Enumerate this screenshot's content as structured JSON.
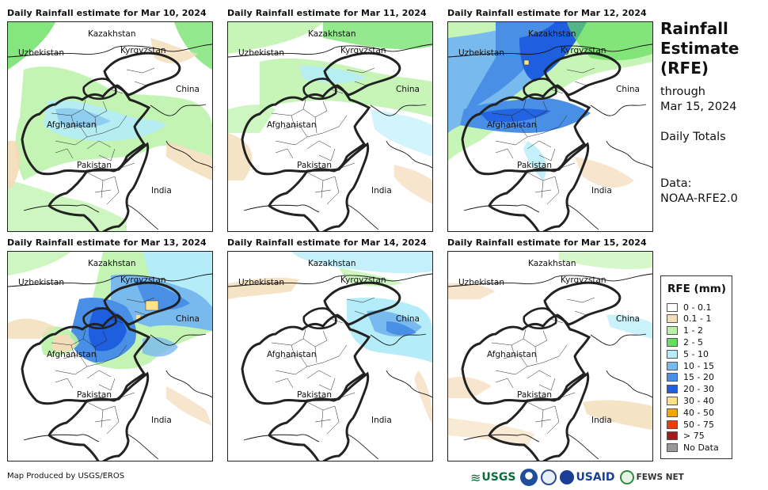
{
  "panels": [
    {
      "title": "Daily Rainfall estimate for Mar 10, 2024",
      "rain": "light-widespread"
    },
    {
      "title": "Daily Rainfall estimate for Mar 11, 2024",
      "rain": "light-north"
    },
    {
      "title": "Daily Rainfall estimate for Mar 12, 2024",
      "rain": "heavy-band"
    },
    {
      "title": "Daily Rainfall estimate for Mar 13, 2024",
      "rain": "heavy-east"
    },
    {
      "title": "Daily Rainfall estimate for Mar 14, 2024",
      "rain": "east-only"
    },
    {
      "title": "Daily Rainfall estimate for Mar 15, 2024",
      "rain": "sparse"
    }
  ],
  "map_labels": {
    "kazakhstan": "Kazakhstan",
    "uzbekistan": "Uzbekistan",
    "kyrgyzstan": "Kyrgyzstan",
    "china": "China",
    "afghanistan": "Afghanistan",
    "pakistan": "Pakistan",
    "india": "India"
  },
  "side": {
    "title_line1": "Rainfall",
    "title_line2": "Estimate",
    "title_line3": "(RFE)",
    "through": "through",
    "date": "Mar 15, 2024",
    "totals": "Daily Totals",
    "data_label": "Data:",
    "data_source": "NOAA-RFE2.0"
  },
  "legend": {
    "title": "RFE (mm)",
    "items": [
      {
        "label": "0 - 0.1",
        "color": "#ffffff"
      },
      {
        "label": "0.1 - 1",
        "color": "#f3dcb8"
      },
      {
        "label": "1 - 2",
        "color": "#b9f2a6"
      },
      {
        "label": "2 - 5",
        "color": "#66de5e"
      },
      {
        "label": "5 - 10",
        "color": "#b4ecfa"
      },
      {
        "label": "10 - 15",
        "color": "#78b9ee"
      },
      {
        "label": "15 - 20",
        "color": "#4a8fe6"
      },
      {
        "label": "20 - 30",
        "color": "#1e5fe0"
      },
      {
        "label": "30 - 40",
        "color": "#fde28a"
      },
      {
        "label": "40 - 50",
        "color": "#f7a500"
      },
      {
        "label": "50 - 75",
        "color": "#f13c0a"
      },
      {
        "label": "> 75",
        "color": "#a11c1c"
      },
      {
        "label": "No Data",
        "color": "#999999"
      }
    ]
  },
  "footer": {
    "credit": "Map Produced by USGS/EROS",
    "logo_usgs": "USGS",
    "logo_usaid": "USAID",
    "logo_fews": "FEWS NET"
  }
}
